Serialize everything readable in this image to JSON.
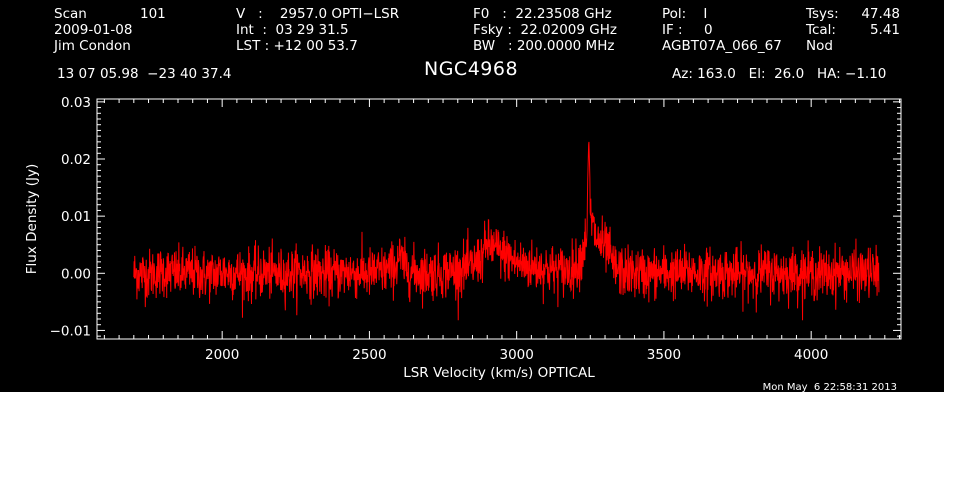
{
  "header": {
    "scan_label": "Scan",
    "scan_value": "101",
    "date": "2009-01-08",
    "observer": "Jim Condon",
    "coords": "13 07 05.98  −23 40 37.4",
    "v_line": "V   :    2957.0 OPTI−LSR",
    "int_line": "Int  :  03 29 31.5",
    "lst_line": "LST : +12 00 53.7",
    "f0_line": "F0   :  22.23508 GHz",
    "fsky_line": "Fsky :  22.02009 GHz",
    "bw_line": "BW   : 200.0000 MHz",
    "pol_line": "Pol:    I",
    "if_line": "IF :     0",
    "project": "AGBT07A_066_67",
    "tsys_label": "Tsys:",
    "tsys_value": "47.48",
    "tcal_label": "Tcal:",
    "tcal_value": "5.41",
    "nod": "Nod",
    "source": "NGC4968",
    "az_el_ha": "Az: 163.0   El:  26.0   HA: −1.10"
  },
  "timestamp": "Mon May  6 22:58:31 2013",
  "colors": {
    "background": "#000000",
    "axes": "#ffffff",
    "trace": "#ff0000"
  },
  "chart_data": {
    "type": "line",
    "xlabel": "LSR Velocity (km/s) OPTICAL",
    "ylabel": "Flux Density (Jy)",
    "xlim": [
      1575,
      4305
    ],
    "ylim": [
      -0.0115,
      0.0305
    ],
    "x_ticks": [
      2000,
      2500,
      3000,
      3500,
      4000
    ],
    "x_tick_labels": [
      "2000",
      "2500",
      "3000",
      "3500",
      "4000"
    ],
    "y_ticks": [
      -0.01,
      0.0,
      0.01,
      0.02,
      0.03
    ],
    "y_tick_labels": [
      "−0.01",
      "0.00",
      "0.01",
      "0.02",
      "0.03"
    ],
    "grid": false,
    "series": [
      {
        "color": "#ff0000",
        "x": [
          1700,
          1750,
          1800,
          1850,
          1900,
          1950,
          2000,
          2050,
          2100,
          2150,
          2200,
          2250,
          2300,
          2350,
          2400,
          2450,
          2500,
          2550,
          2590,
          2600,
          2620,
          2650,
          2700,
          2750,
          2800,
          2850,
          2880,
          2900,
          2920,
          2950,
          2980,
          3000,
          3050,
          3100,
          3150,
          3180,
          3200,
          3220,
          3235,
          3245,
          3255,
          3270,
          3290,
          3310,
          3330,
          3360,
          3400,
          3450,
          3500,
          3550,
          3600,
          3650,
          3700,
          3750,
          3800,
          3850,
          3900,
          3950,
          4000,
          4050,
          4100,
          4150,
          4200,
          4230
        ],
        "y": [
          0.0,
          -0.0002,
          0.0003,
          -0.0001,
          0.0001,
          -0.0004,
          0.0002,
          0.0,
          -0.0003,
          0.0001,
          -0.0002,
          0.0001,
          0.0003,
          -0.0002,
          0.0,
          0.0002,
          -0.0001,
          0.0004,
          0.0012,
          0.003,
          0.001,
          0.0002,
          0.0,
          0.0002,
          0.0006,
          0.0012,
          0.0028,
          0.005,
          0.0045,
          0.0035,
          0.0025,
          0.0018,
          0.0012,
          0.0008,
          0.0004,
          0.0006,
          0.0012,
          0.003,
          0.006,
          0.013,
          0.009,
          0.006,
          0.005,
          0.004,
          0.001,
          0.0002,
          0.0001,
          -0.0002,
          0.0002,
          0.0,
          0.0003,
          -0.0001,
          0.0001,
          -0.0002,
          0.0,
          0.0002,
          -0.0001,
          0.0001,
          0.0,
          -0.0002,
          0.0002,
          0.0,
          0.0001,
          0.0
        ],
        "noise_rms": 0.0022
      }
    ]
  }
}
